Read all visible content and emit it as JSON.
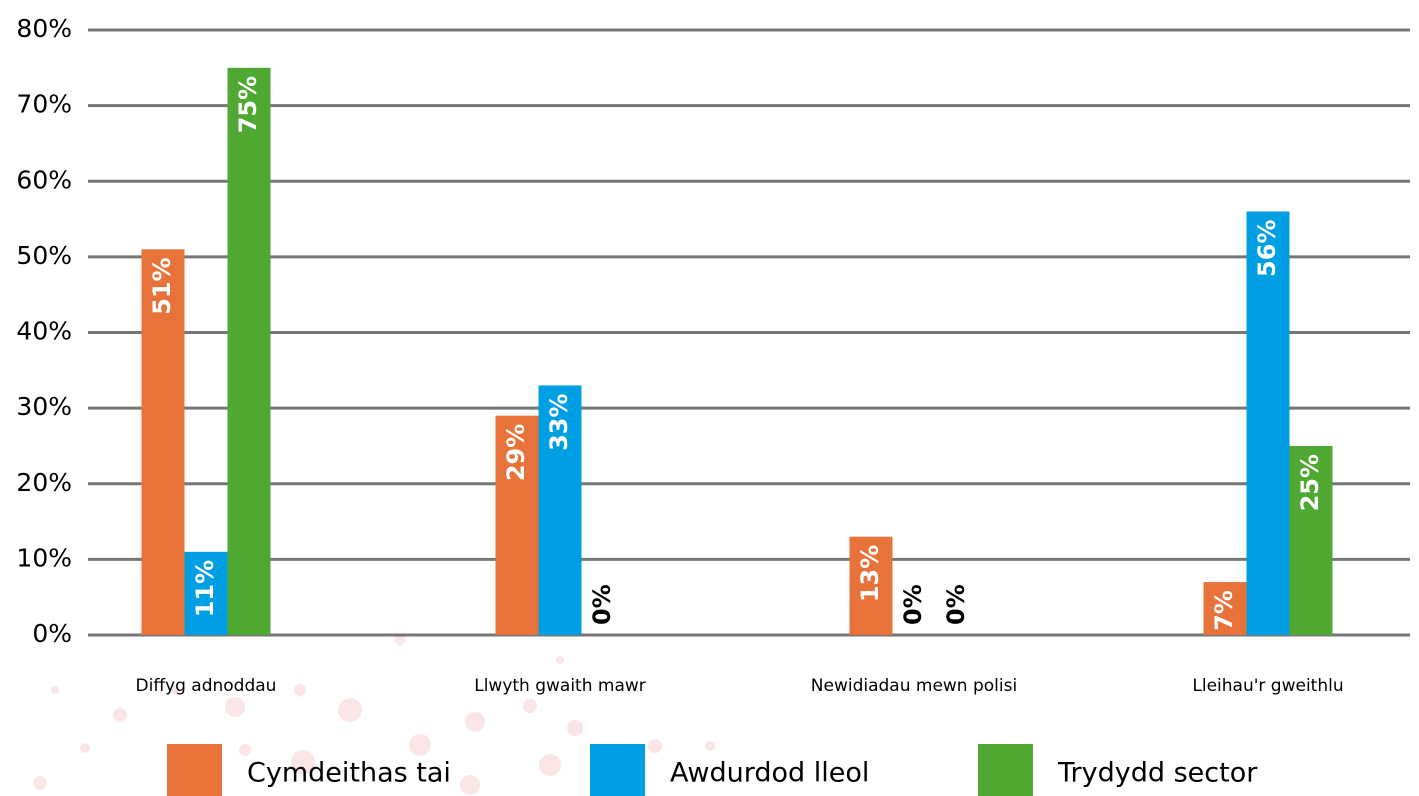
{
  "chart_data": {
    "type": "bar",
    "categories": [
      "Diffyg adnoddau",
      "Llwyth gwaith mawr",
      "Newidiadau mewn polisi",
      "Lleihau'r gweithlu"
    ],
    "series": [
      {
        "name": "Cymdeithas tai",
        "color": "#e8733a",
        "values": [
          51,
          29,
          13,
          7
        ],
        "value_labels": [
          "51%",
          "29%",
          "13%",
          "7%"
        ]
      },
      {
        "name": "Awdurdod lleol",
        "color": "#009fe3",
        "values": [
          11,
          33,
          0,
          56
        ],
        "value_labels": [
          "11%",
          "33%",
          "0%",
          "56%"
        ]
      },
      {
        "name": "Trydydd sector",
        "color": "#4ea832",
        "values": [
          75,
          0,
          0,
          25
        ],
        "value_labels": [
          "75%",
          "0%",
          "0%",
          "25%"
        ]
      }
    ],
    "ylim": [
      0,
      80
    ],
    "yticks": [
      {
        "value": 0,
        "label": "0%"
      },
      {
        "value": 10,
        "label": "10%"
      },
      {
        "value": 20,
        "label": "20%"
      },
      {
        "value": 30,
        "label": "30%"
      },
      {
        "value": 40,
        "label": "40%"
      },
      {
        "value": 50,
        "label": "50%"
      },
      {
        "value": 60,
        "label": "60%"
      },
      {
        "value": 70,
        "label": "70%"
      },
      {
        "value": 80,
        "label": "80%"
      }
    ],
    "grid": true,
    "legend": "bottom"
  }
}
